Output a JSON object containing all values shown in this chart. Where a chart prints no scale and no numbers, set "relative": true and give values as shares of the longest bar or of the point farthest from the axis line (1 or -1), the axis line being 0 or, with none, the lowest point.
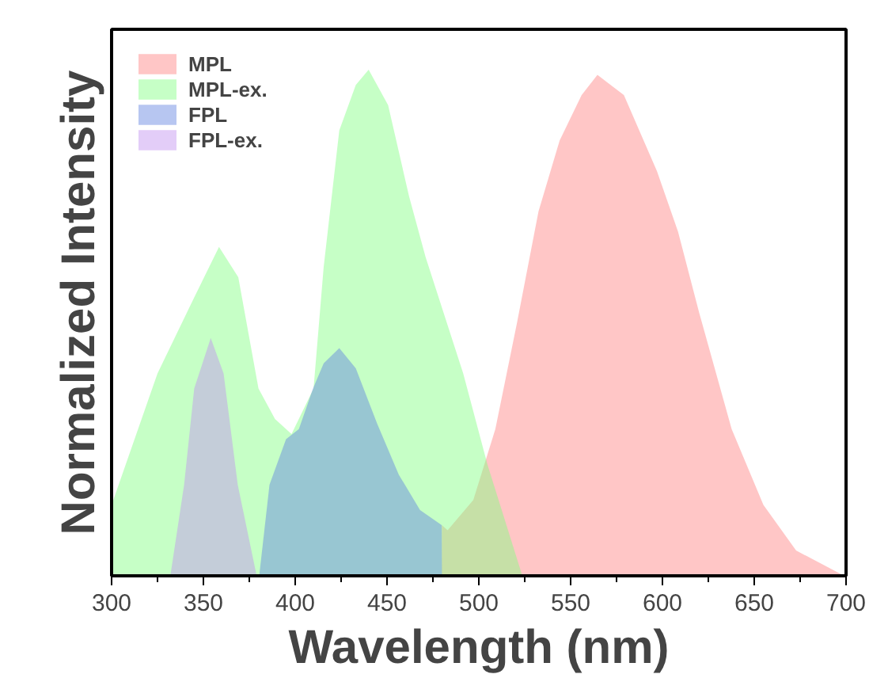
{
  "chart_data": {
    "type": "area",
    "relative": true,
    "xlabel": "Wavelength (nm)",
    "ylabel": "Normalized Intensity",
    "xlim": [
      300,
      700
    ],
    "xticks": [
      300,
      {
        "value": 325,
        "label": null
      },
      350,
      {
        "value": 375,
        "label": null
      },
      400,
      {
        "value": 425,
        "label": null
      },
      450,
      {
        "value": 475,
        "label": null
      },
      500,
      {
        "value": 525,
        "label": null
      },
      550,
      {
        "value": 575,
        "label": null
      },
      600,
      {
        "value": 625,
        "label": null
      },
      650,
      {
        "value": 675,
        "label": null
      },
      700
    ],
    "legend": "top left",
    "grid": false,
    "tick_labels": "x",
    "series": [
      {
        "name": "MPL",
        "color": "#ff8080",
        "x": [
          479.8,
          479.9,
          483,
          497,
          509,
          520.8,
          532.5,
          544,
          556,
          564.6,
          579,
          597,
          608.5,
          620,
          637.7,
          655,
          672.8,
          699
        ],
        "values": [
          0,
          0.1,
          0.09,
          0.15,
          0.29,
          0.5,
          0.72,
          0.86,
          0.95,
          0.99,
          0.95,
          0.8,
          0.68,
          0.52,
          0.29,
          0.14,
          0.05,
          0
        ]
      },
      {
        "name": "MPL-ex.",
        "color": "#80ff80",
        "x": [
          300,
          325,
          345,
          358.5,
          369,
          380,
          389,
          398,
          410,
          415.5,
          424,
          433,
          440,
          450.6,
          462,
          471,
          491.5,
          504.7,
          523.7
        ],
        "values": [
          0.14,
          0.4,
          0.55,
          0.65,
          0.59,
          0.37,
          0.31,
          0.28,
          0.37,
          0.61,
          0.88,
          0.97,
          1.0,
          0.93,
          0.75,
          0.63,
          0.4,
          0.22,
          0
        ]
      },
      {
        "name": "FPL",
        "color": "#6080e0",
        "x": [
          380.4,
          386,
          395,
          402,
          409.7,
          415.5,
          424,
          433,
          444.7,
          456.4,
          468,
          479.8,
          479.9
        ],
        "values": [
          0,
          0.18,
          0.27,
          0.29,
          0.37,
          0.42,
          0.45,
          0.41,
          0.3,
          0.2,
          0.13,
          0.1,
          0
        ]
      },
      {
        "name": "FPL-ex.",
        "color": "#c090f0",
        "x": [
          332,
          339.5,
          345,
          354,
          361,
          368.7,
          379
        ],
        "values": [
          0,
          0.18,
          0.37,
          0.47,
          0.4,
          0.18,
          0
        ]
      }
    ]
  }
}
